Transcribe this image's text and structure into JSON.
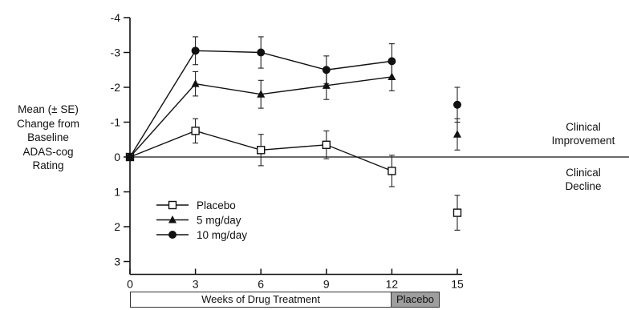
{
  "chart_data": {
    "type": "line",
    "title": "",
    "xlabel": "",
    "ylabel": "Mean (± SE) Change from Baseline ADAS-cog Rating",
    "ylabel_lines": [
      "Mean (± SE)",
      "Change from",
      "Baseline",
      "ADAS-cog",
      "Rating"
    ],
    "x_ticks": [
      0,
      3,
      6,
      9,
      12,
      15
    ],
    "y_ticks": [
      -4,
      -3,
      -2,
      -1,
      0,
      1,
      2,
      3
    ],
    "xlim": [
      0,
      15
    ],
    "ylim": [
      -4,
      3
    ],
    "y_axis_inverted": true,
    "grid": false,
    "legend_position": "bottom-left",
    "series": [
      {
        "name": "Placebo",
        "marker": "open-square",
        "x": [
          0,
          3,
          6,
          9,
          12
        ],
        "y": [
          0,
          -0.75,
          -0.2,
          -0.35,
          0.4
        ],
        "se": [
          0,
          0.35,
          0.45,
          0.4,
          0.45
        ],
        "followup": {
          "x": 15,
          "y": 1.6,
          "se": 0.5
        }
      },
      {
        "name": "5 mg/day",
        "marker": "filled-triangle",
        "x": [
          0,
          3,
          6,
          9,
          12
        ],
        "y": [
          0,
          -2.1,
          -1.8,
          -2.05,
          -2.3
        ],
        "se": [
          0,
          0.35,
          0.4,
          0.4,
          0.4
        ],
        "followup": {
          "x": 15,
          "y": -0.65,
          "se": 0.45
        }
      },
      {
        "name": "10 mg/day",
        "marker": "filled-circle",
        "x": [
          0,
          3,
          6,
          9,
          12
        ],
        "y": [
          0,
          -3.05,
          -3.0,
          -2.5,
          -2.75
        ],
        "se": [
          0,
          0.4,
          0.45,
          0.4,
          0.5
        ],
        "followup": {
          "x": 15,
          "y": -1.5,
          "se": 0.5
        }
      }
    ],
    "annotations": {
      "improvement": "Clinical Improvement",
      "improvement_lines": [
        "Clinical",
        "Improvement"
      ],
      "decline": "Clinical Decline",
      "decline_lines": [
        "Clinical",
        "Decline"
      ]
    },
    "x_bands": [
      {
        "label": "Weeks of Drug Treatment",
        "from": 0,
        "to": 12,
        "color": "#ffffff"
      },
      {
        "label": "Placebo",
        "from": 12,
        "to": 15,
        "color": "#9e9e9e"
      }
    ]
  }
}
